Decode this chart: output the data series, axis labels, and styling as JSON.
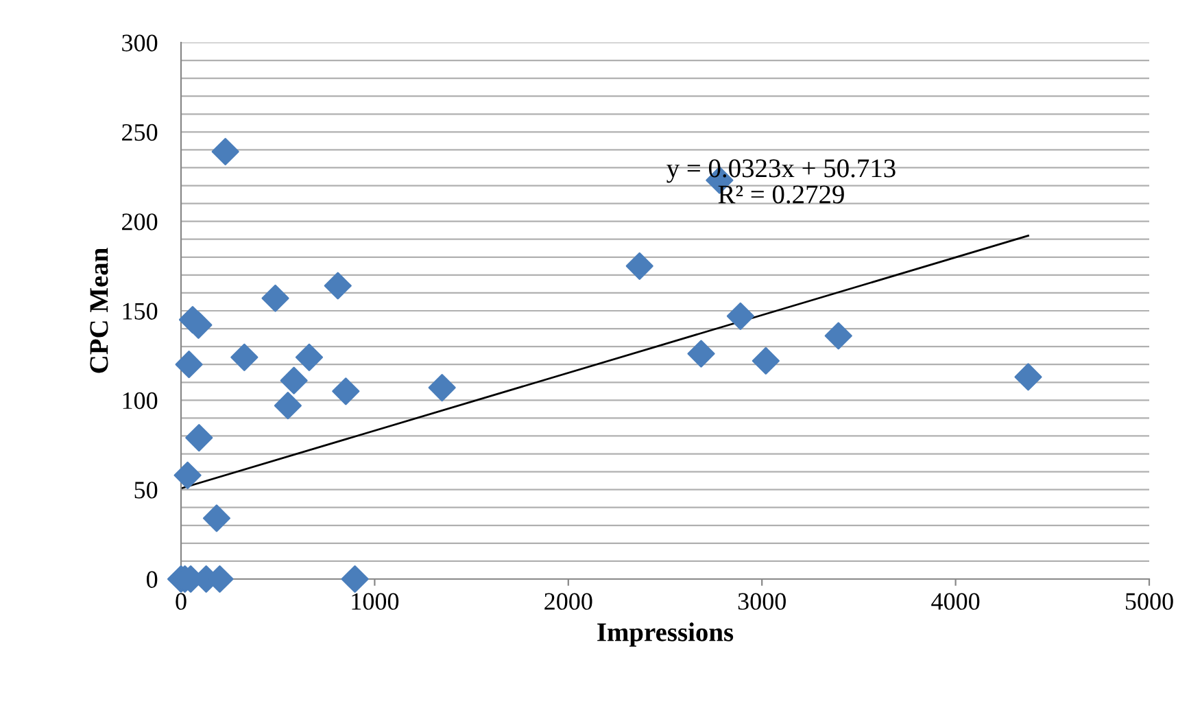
{
  "chart_data": {
    "type": "scatter",
    "xlabel": "Impressions",
    "ylabel": "CPC Mean",
    "xlim": [
      0,
      5000
    ],
    "xticks": [
      0,
      1000,
      2000,
      3000,
      4000,
      5000
    ],
    "ylim": [
      0,
      300
    ],
    "yticks": [
      0,
      {
        "value": 10,
        "label": null
      },
      {
        "value": 20,
        "label": null
      },
      {
        "value": 30,
        "label": null
      },
      {
        "value": 40,
        "label": null
      },
      50,
      {
        "value": 60,
        "label": null
      },
      {
        "value": 70,
        "label": null
      },
      {
        "value": 80,
        "label": null
      },
      {
        "value": 90,
        "label": null
      },
      100,
      {
        "value": 110,
        "label": null
      },
      {
        "value": 120,
        "label": null
      },
      {
        "value": 130,
        "label": null
      },
      {
        "value": 140,
        "label": null
      },
      150,
      {
        "value": 160,
        "label": null
      },
      {
        "value": 170,
        "label": null
      },
      {
        "value": 180,
        "label": null
      },
      {
        "value": 190,
        "label": null
      },
      200,
      {
        "value": 210,
        "label": null
      },
      {
        "value": 220,
        "label": null
      },
      {
        "value": 230,
        "label": null
      },
      {
        "value": 240,
        "label": null
      },
      250,
      {
        "value": 260,
        "label": null
      },
      {
        "value": 270,
        "label": null
      },
      {
        "value": 280,
        "label": null
      },
      {
        "value": 290,
        "label": null
      },
      300
    ],
    "grid": "y",
    "marker": "diamond",
    "legend": false,
    "series": [
      {
        "color": "#4a7ebb",
        "x": [
          229,
          810,
          487,
          60,
          90,
          41,
          327,
          662,
          583,
          552,
          851,
          1348,
          93,
          34,
          184,
          0,
          20,
          50,
          130,
          200,
          898,
          2781,
          2368,
          2889,
          2686,
          3020,
          3395,
          4375
        ],
        "values": [
          239,
          164,
          157,
          145,
          142,
          120,
          124,
          124,
          111,
          97,
          105,
          107,
          79,
          58,
          34,
          0,
          0,
          0,
          0,
          0,
          0,
          223,
          175,
          147,
          126,
          122,
          136,
          113
        ]
      },
      {
        "type": "line",
        "color": "#000000",
        "x": [
          0,
          4375
        ],
        "values": [
          50.7,
          192.0
        ],
        "line_style": "solid",
        "marker": "none"
      }
    ],
    "annotations": [
      "y = 0.0323x + 50.713\nR² = 0.2729"
    ]
  }
}
